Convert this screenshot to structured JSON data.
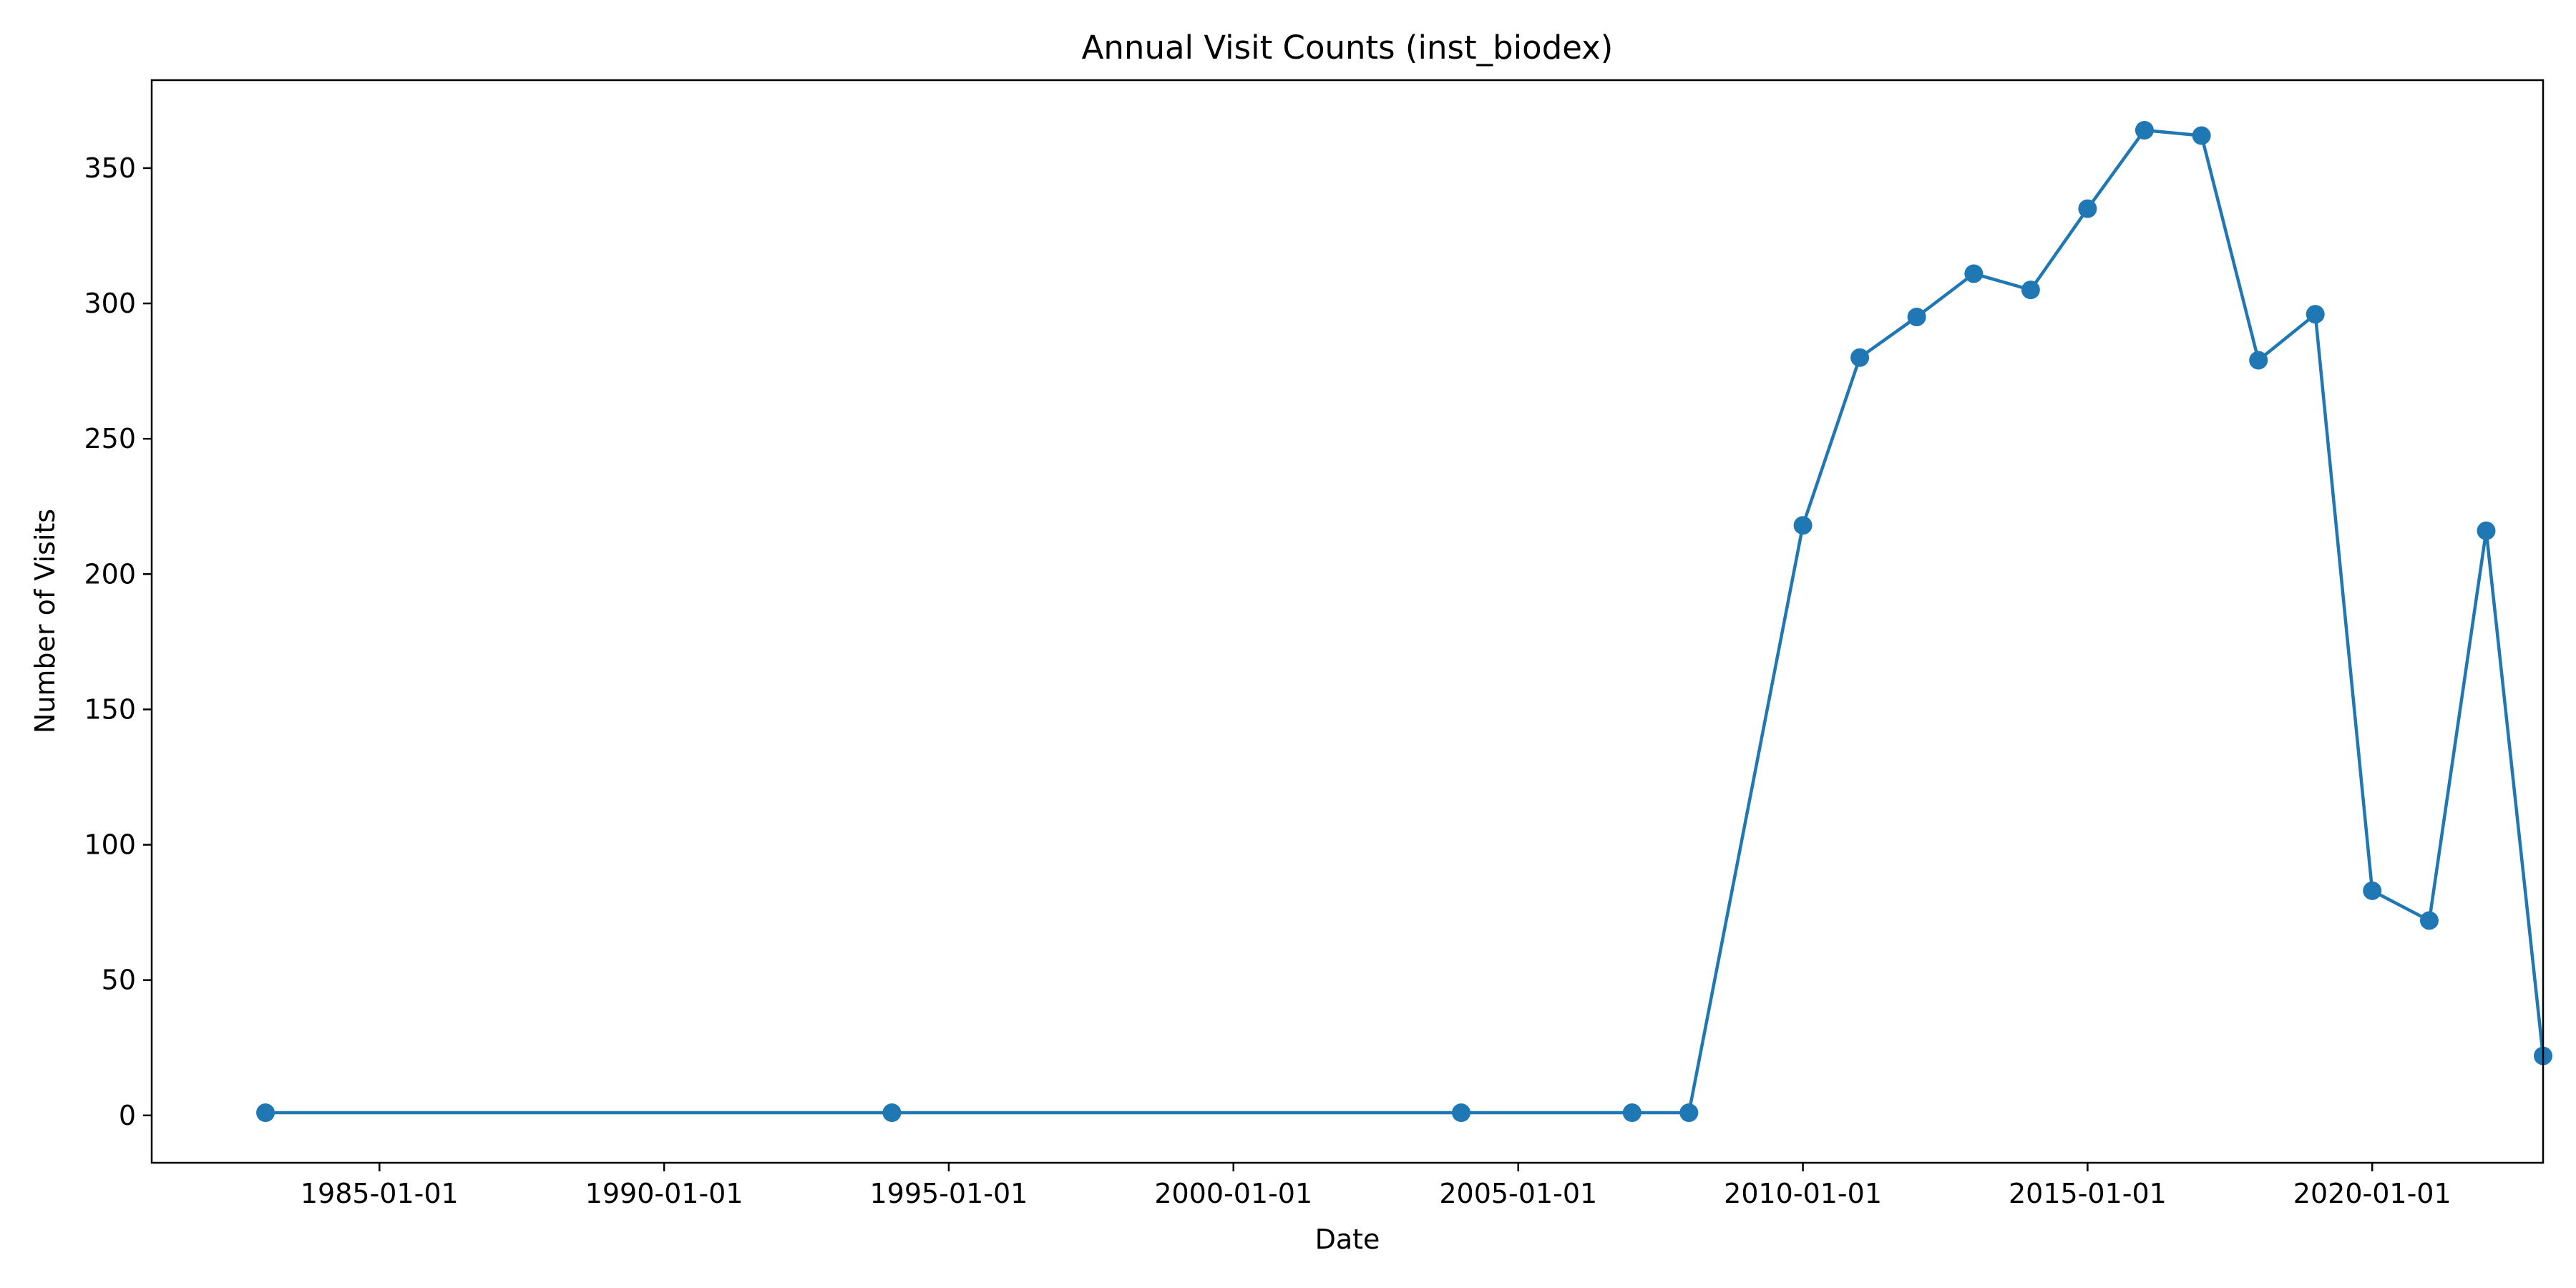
{
  "chart_data": {
    "type": "line",
    "title": "Annual Visit Counts (inst_biodex)",
    "xlabel": "Date",
    "ylabel": "Number of Visits",
    "x_ticks": [
      "1985-01-01",
      "1990-01-01",
      "1995-01-01",
      "2000-01-01",
      "2005-01-01",
      "2010-01-01",
      "2015-01-01",
      "2020-01-01"
    ],
    "y_ticks": [
      0,
      50,
      100,
      150,
      200,
      250,
      300,
      350
    ],
    "ylim": [
      -17.5,
      382.5
    ],
    "xlim": [
      "1981-01-01",
      "2023-01-01"
    ],
    "grid": false,
    "legend": "none",
    "color": "#1f77b4",
    "marker": "circle",
    "series": [
      {
        "points": [
          {
            "x": "1983-01-01",
            "y": 1
          },
          {
            "x": "1994-01-01",
            "y": 1
          },
          {
            "x": "2004-01-01",
            "y": 1
          },
          {
            "x": "2007-01-01",
            "y": 1
          },
          {
            "x": "2008-01-01",
            "y": 1
          },
          {
            "x": "2010-01-01",
            "y": 218
          },
          {
            "x": "2011-01-01",
            "y": 280
          },
          {
            "x": "2012-01-01",
            "y": 295
          },
          {
            "x": "2013-01-01",
            "y": 311
          },
          {
            "x": "2014-01-01",
            "y": 305
          },
          {
            "x": "2015-01-01",
            "y": 335
          },
          {
            "x": "2016-01-01",
            "y": 364
          },
          {
            "x": "2017-01-01",
            "y": 362
          },
          {
            "x": "2018-01-01",
            "y": 279
          },
          {
            "x": "2019-01-01",
            "y": 296
          },
          {
            "x": "2020-01-01",
            "y": 83
          },
          {
            "x": "2021-01-01",
            "y": 72
          },
          {
            "x": "2022-01-01",
            "y": 216
          },
          {
            "x": "2023-01-01",
            "y": 22
          }
        ]
      }
    ]
  }
}
